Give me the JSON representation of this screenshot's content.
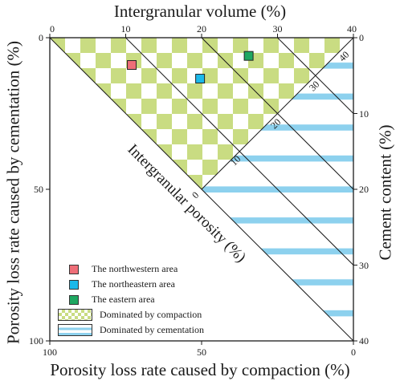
{
  "axes": {
    "top_title": "Intergranular volume (%)",
    "bottom_title": "Porosity loss rate caused by compaction (%)",
    "left_title": "Porosity loss rate caused by cementation (%)",
    "right_title": "Cement content (%)",
    "diagonal_title": "Intergranular porosity (%)",
    "top_ticks": [
      "0",
      "10",
      "20",
      "30",
      "40"
    ],
    "bottom_ticks": [
      "100",
      "50",
      "0"
    ],
    "left_ticks": [
      "0",
      "50",
      "100"
    ],
    "right_ticks": [
      "0",
      "10",
      "20",
      "30",
      "40"
    ],
    "porosity_ticks": [
      "0",
      "10",
      "20",
      "30",
      "40"
    ]
  },
  "legend": {
    "northwestern": "The northwestern area",
    "northeastern": "The northeastern area",
    "eastern": "The eastern area",
    "compaction": "Dominated by compaction",
    "cementation": "Dominated by cementation"
  },
  "colors": {
    "northwestern": "#ee6e78",
    "northeastern": "#1cb9ea",
    "eastern": "#1fa862",
    "compaction": "#c9dc82",
    "cementation": "#8dd1ee"
  },
  "chart_data": {
    "type": "scatter",
    "x_axis": "Intergranular volume (%)",
    "y_axis": "Cement content (%)",
    "xlim": [
      0,
      40
    ],
    "ylim": [
      40,
      0
    ],
    "series": [
      {
        "name": "The northwestern area",
        "x": 10.8,
        "y": 3.6
      },
      {
        "name": "The northeastern area",
        "x": 19.8,
        "y": 5.4
      },
      {
        "name": "The eastern area",
        "x": 26.2,
        "y": 2.4
      }
    ],
    "isolines": {
      "label": "Intergranular porosity (%)",
      "values": [
        0,
        10,
        20,
        30,
        40
      ]
    }
  }
}
